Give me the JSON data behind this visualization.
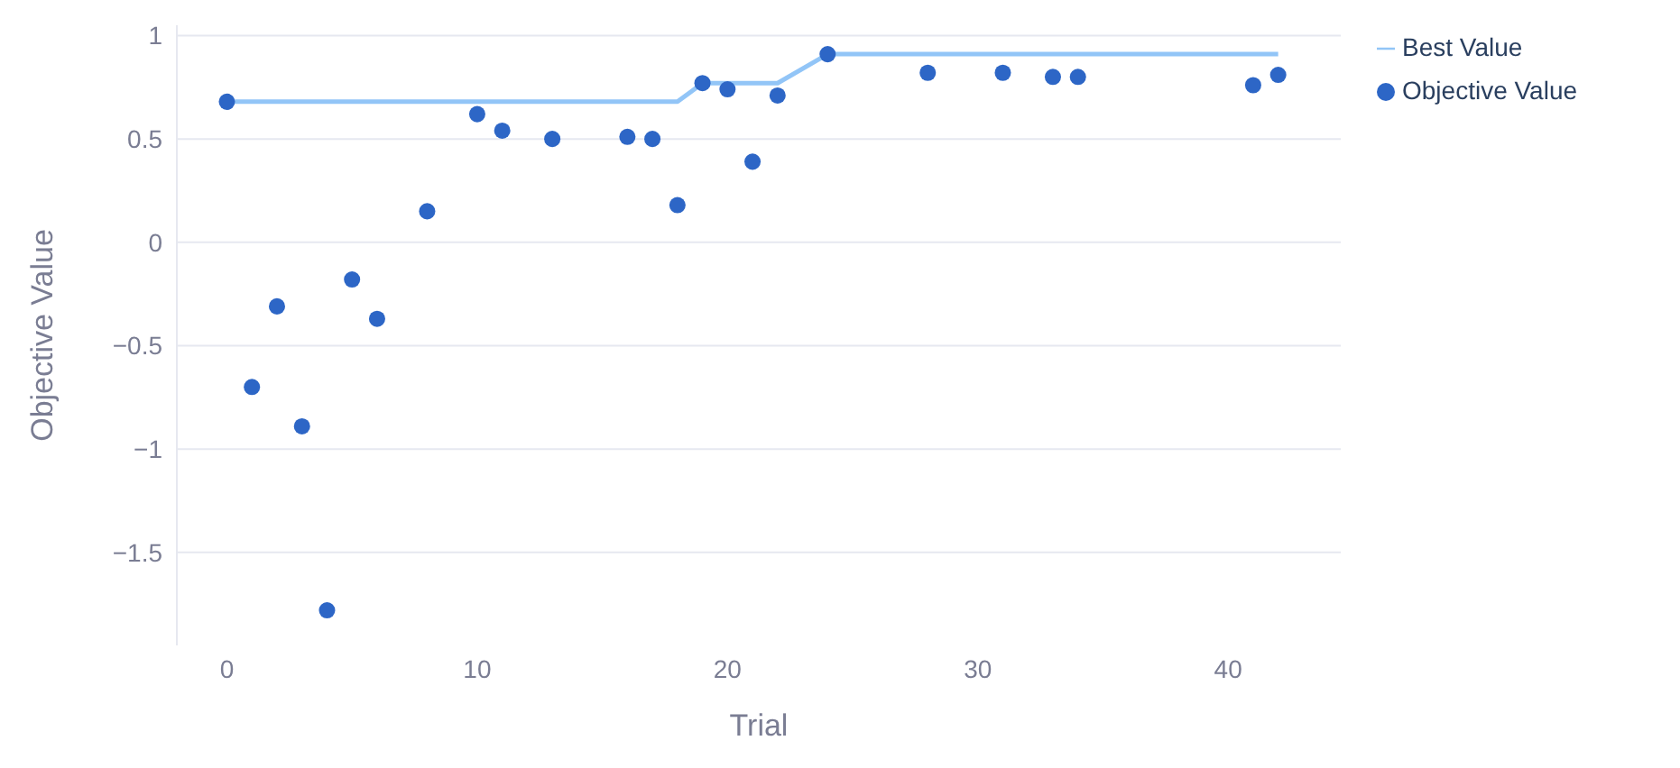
{
  "chart_data": {
    "type": "scatter",
    "xlabel": "Trial",
    "ylabel": "Objective Value",
    "x": [
      0,
      1,
      2,
      3,
      4,
      5,
      6,
      8,
      10,
      11,
      13,
      16,
      17,
      18,
      19,
      20,
      21,
      22,
      24,
      28,
      31,
      33,
      34,
      41,
      42
    ],
    "series": [
      {
        "name": "Objective Value",
        "marker": "circle",
        "color": "#2d66c6",
        "values": [
          0.68,
          -0.7,
          -0.31,
          -0.89,
          -1.78,
          -0.18,
          -0.37,
          0.15,
          0.62,
          0.54,
          0.5,
          0.51,
          0.5,
          0.18,
          0.77,
          0.74,
          0.39,
          0.71,
          0.91,
          0.82,
          0.82,
          0.8,
          0.8,
          0.76,
          0.81
        ]
      },
      {
        "name": "Best Value",
        "type": "line",
        "line_style": "solid",
        "color": "#92c5f7",
        "values": [
          0.68,
          0.68,
          0.68,
          0.68,
          0.68,
          0.68,
          0.68,
          0.68,
          0.68,
          0.68,
          0.68,
          0.68,
          0.68,
          0.68,
          0.77,
          0.77,
          0.77,
          0.77,
          0.91,
          0.91,
          0.91,
          0.91,
          0.91,
          0.91,
          0.91
        ]
      }
    ],
    "xlim": [
      -2,
      44.5
    ],
    "xticks": [
      0,
      10,
      20,
      30,
      40
    ],
    "ylim": [
      -1.95,
      1.05
    ],
    "yticks": [
      1,
      0.5,
      0,
      {
        "value": -0.5,
        "label": "−0.5"
      },
      {
        "value": -1,
        "label": "−1"
      },
      {
        "value": -1.5,
        "label": "−1.5"
      }
    ],
    "grid": "y",
    "legend": "top right"
  }
}
